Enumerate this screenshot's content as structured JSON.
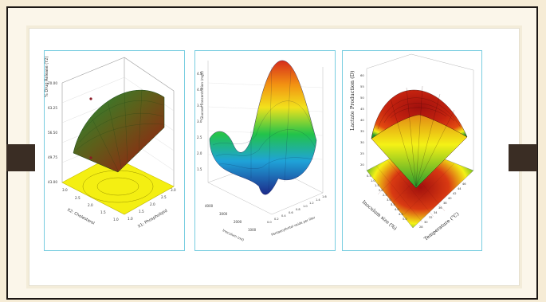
{
  "chart_data": [
    {
      "type": "surface",
      "zlabel": "% Drug Release (Y2)",
      "xlabel": "X2: Cholesterol",
      "ylabel": "X1: Phospholipid",
      "z_ticks": [
        "70.00",
        "63.25",
        "56.50",
        "49.75",
        "43.00"
      ],
      "x_ticks": [
        "3.0",
        "2.5",
        "2.0",
        "1.5",
        "1.0"
      ],
      "y_ticks": [
        "1.0",
        "1.5",
        "2.0",
        "2.5",
        "3.0"
      ],
      "xlim": [
        1.0,
        3.0
      ],
      "ylim": [
        1.0,
        3.0
      ],
      "zlim": [
        43.0,
        70.0
      ],
      "colormap": [
        "#1a8f3a",
        "#6b6a1a",
        "#a3120f"
      ],
      "floor_color": "#f4ef12"
    },
    {
      "type": "surface",
      "zlabel": "Glucose concentration (mg/l)",
      "xlabel": "Inoculum (ml)",
      "ylabel": "Pentaerythritol oxide per liter",
      "z_ticks": [
        "4.5",
        "4.0",
        "3.5",
        "3.0",
        "2.5",
        "2.0",
        "1.5"
      ],
      "x_ticks": [
        "4000",
        "3000",
        "2000",
        "1000"
      ],
      "y_ticks": [
        "0.0",
        "0.2",
        "0.4",
        "0.6",
        "0.8",
        "1.0",
        "1.2",
        "1.4",
        "1.6"
      ],
      "colormap": [
        "#1c2a8a",
        "#1fa3d8",
        "#22c34a",
        "#f2e21c",
        "#f29212",
        "#d62c1c"
      ]
    },
    {
      "type": "surface",
      "zlabel": "Lactate Production (D)",
      "xlabel": "Temperature (°C)",
      "ylabel": "Inoculum size (%)",
      "z_ticks": [
        "60",
        "55",
        "50",
        "45",
        "40",
        "35",
        "30",
        "25",
        "20"
      ],
      "x_ticks": [
        "28",
        "30",
        "32",
        "34",
        "36",
        "38",
        "40",
        "42",
        "44",
        "46"
      ],
      "y_ticks": [
        "0.5",
        "1.0",
        "1.5",
        "2.0",
        "2.5",
        "3.0",
        "3.5",
        "4.0",
        "4.5",
        "5.0"
      ],
      "colormap": [
        "#1f9a2e",
        "#f4f116",
        "#e34a10",
        "#a1100d"
      ]
    }
  ]
}
